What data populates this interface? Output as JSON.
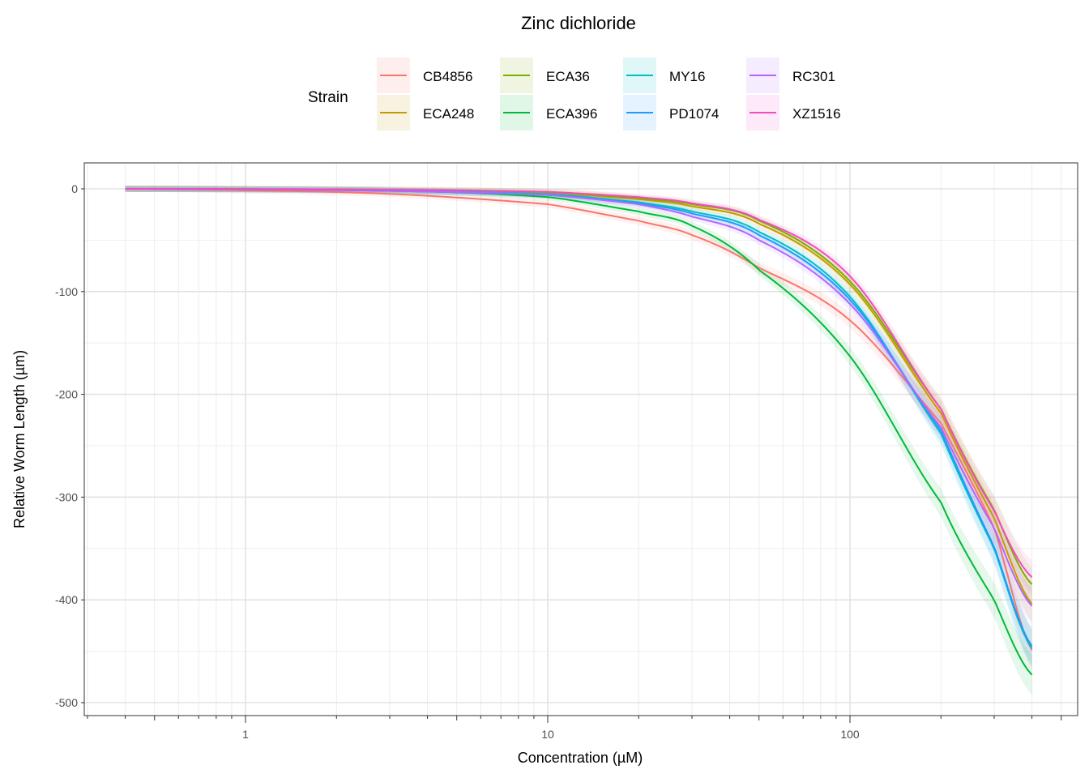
{
  "chart_data": {
    "type": "line",
    "title": "Zinc dichloride",
    "xlabel": "Concentration (µM)",
    "ylabel": "Relative Worm Length (µm)",
    "xscale": "log10",
    "xlim": [
      0.3,
      550
    ],
    "ylim": [
      -512,
      25
    ],
    "xticks": [
      {
        "v": 1,
        "label": "1"
      },
      {
        "v": 10,
        "label": "10"
      },
      {
        "v": 100,
        "label": "100"
      }
    ],
    "yticks": [
      {
        "v": 0,
        "label": "0"
      },
      {
        "v": -100,
        "label": "-100"
      },
      {
        "v": -200,
        "label": "-200"
      },
      {
        "v": -300,
        "label": "-300"
      },
      {
        "v": -400,
        "label": "-400"
      },
      {
        "v": -500,
        "label": "-500"
      }
    ],
    "legend": {
      "title": "Strain",
      "position": "top"
    },
    "x": [
      0.4,
      1,
      3,
      10,
      20,
      30,
      50,
      100,
      200,
      300,
      400
    ],
    "series": [
      {
        "name": "CB4856",
        "color": "#F8766D",
        "values": [
          0,
          -1.5,
          -5,
          -15,
          -31,
          -45,
          -77,
          -128,
          -228,
          -330,
          -449
        ]
      },
      {
        "name": "ECA248",
        "color": "#C49A00",
        "values": [
          0,
          -0.3,
          -1,
          -4,
          -10,
          -17,
          -34,
          -93,
          -218,
          -320,
          -404
        ]
      },
      {
        "name": "ECA36",
        "color": "#53B400",
        "values": [
          0,
          -0.3,
          -1,
          -3,
          -9,
          -15,
          -31,
          -90,
          -214,
          -312,
          -385
        ]
      },
      {
        "name": "ECA396",
        "color": "#00C094",
        "values": [
          0,
          -0.3,
          -1.5,
          -8,
          -22,
          -36,
          -79,
          -163,
          -305,
          -400,
          -473
        ]
      },
      {
        "name": "MY16",
        "color": "#00B6EB",
        "values": [
          0,
          -0.5,
          -2,
          -5,
          -13,
          -22,
          -42,
          -105,
          -238,
          -350,
          -447
        ]
      },
      {
        "name": "PD1074",
        "color": "#06A4FF",
        "values": [
          0,
          -0.5,
          -2,
          -6,
          -14,
          -24,
          -45,
          -108,
          -235,
          -348,
          -445
        ]
      },
      {
        "name": "RC301",
        "color": "#A58AFF",
        "values": [
          0,
          -0.5,
          -2,
          -6,
          -15,
          -27,
          -50,
          -112,
          -232,
          -330,
          -406
        ]
      },
      {
        "name": "XZ1516",
        "color": "#FB61D7",
        "values": [
          0,
          -0.2,
          -0.8,
          -3,
          -8,
          -14,
          -30,
          -85,
          -214,
          -313,
          -378
        ]
      }
    ]
  }
}
